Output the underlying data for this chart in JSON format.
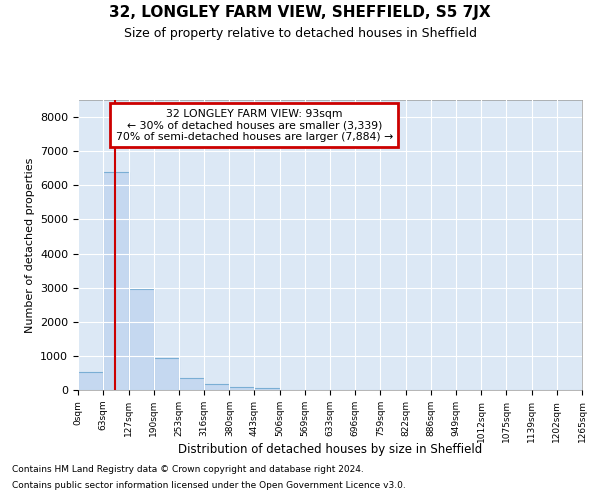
{
  "title": "32, LONGLEY FARM VIEW, SHEFFIELD, S5 7JX",
  "subtitle": "Size of property relative to detached houses in Sheffield",
  "xlabel": "Distribution of detached houses by size in Sheffield",
  "ylabel": "Number of detached properties",
  "footer_line1": "Contains HM Land Registry data © Crown copyright and database right 2024.",
  "footer_line2": "Contains public sector information licensed under the Open Government Licence v3.0.",
  "bar_color": "#c5d8f0",
  "bar_edge_color": "#7aaed4",
  "background_color": "#dce8f5",
  "grid_color": "#ffffff",
  "annotation_box_color": "#cc0000",
  "annotation_line1": "32 LONGLEY FARM VIEW: 93sqm",
  "annotation_line2": "← 30% of detached houses are smaller (3,339)",
  "annotation_line3": "70% of semi-detached houses are larger (7,884) →",
  "property_line_x": 93,
  "property_line_color": "#cc0000",
  "bin_edges": [
    0,
    63,
    127,
    190,
    253,
    316,
    380,
    443,
    506,
    569,
    633,
    696,
    759,
    822,
    886,
    949,
    1012,
    1075,
    1139,
    1202,
    1265
  ],
  "bar_heights": [
    530,
    6380,
    2950,
    950,
    340,
    165,
    100,
    65,
    0,
    0,
    0,
    0,
    0,
    0,
    0,
    0,
    0,
    0,
    0,
    0
  ],
  "ylim": [
    0,
    8500
  ],
  "yticks": [
    0,
    1000,
    2000,
    3000,
    4000,
    5000,
    6000,
    7000,
    8000
  ],
  "tick_labels": [
    "0sqm",
    "63sqm",
    "127sqm",
    "190sqm",
    "253sqm",
    "316sqm",
    "380sqm",
    "443sqm",
    "506sqm",
    "569sqm",
    "633sqm",
    "696sqm",
    "759sqm",
    "822sqm",
    "886sqm",
    "949sqm",
    "1012sqm",
    "1075sqm",
    "1139sqm",
    "1202sqm",
    "1265sqm"
  ]
}
